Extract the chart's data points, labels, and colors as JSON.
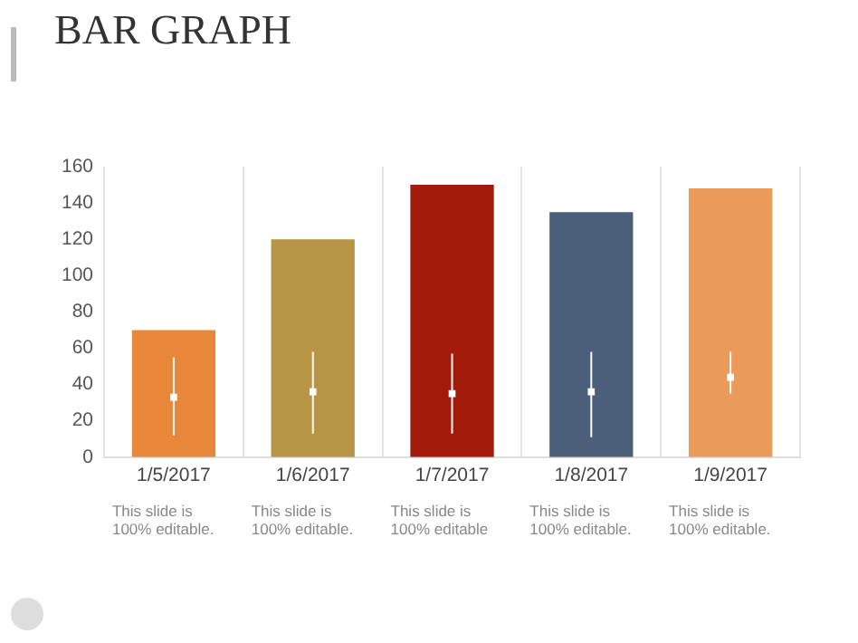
{
  "chart_data": {
    "type": "bar",
    "title": "BAR GRAPH",
    "categories": [
      "1/5/2017",
      "1/6/2017",
      "1/7/2017",
      "1/8/2017",
      "1/9/2017"
    ],
    "series": [
      {
        "colors": [
          "#e8873a",
          "#b89545",
          "#a21a0a",
          "#4b5f7b",
          "#ec9a5a"
        ],
        "values": [
          70,
          120,
          150,
          135,
          148
        ]
      },
      {
        "type": "scatter",
        "color": "#ffffff",
        "x": [
          "1/5/2017",
          "1/6/2017",
          "1/7/2017",
          "1/8/2017",
          "1/9/2017"
        ],
        "values": [
          33,
          36,
          35,
          36,
          44
        ],
        "errors": [
          [
            12,
            55
          ],
          [
            13,
            58
          ],
          [
            13,
            57
          ],
          [
            11,
            58
          ],
          [
            35,
            58
          ]
        ]
      }
    ],
    "ylim": [
      0,
      160
    ],
    "yticks": [
      0,
      20,
      40,
      60,
      80,
      100,
      120,
      140,
      160
    ],
    "grid": "x",
    "legend": false,
    "marker": "square",
    "annotations": [
      "This slide is 100% editable.",
      "This slide is 100% editable.",
      "This slide is 100% editable",
      "This slide is 100% editable.",
      "This slide is 100% editable."
    ]
  }
}
